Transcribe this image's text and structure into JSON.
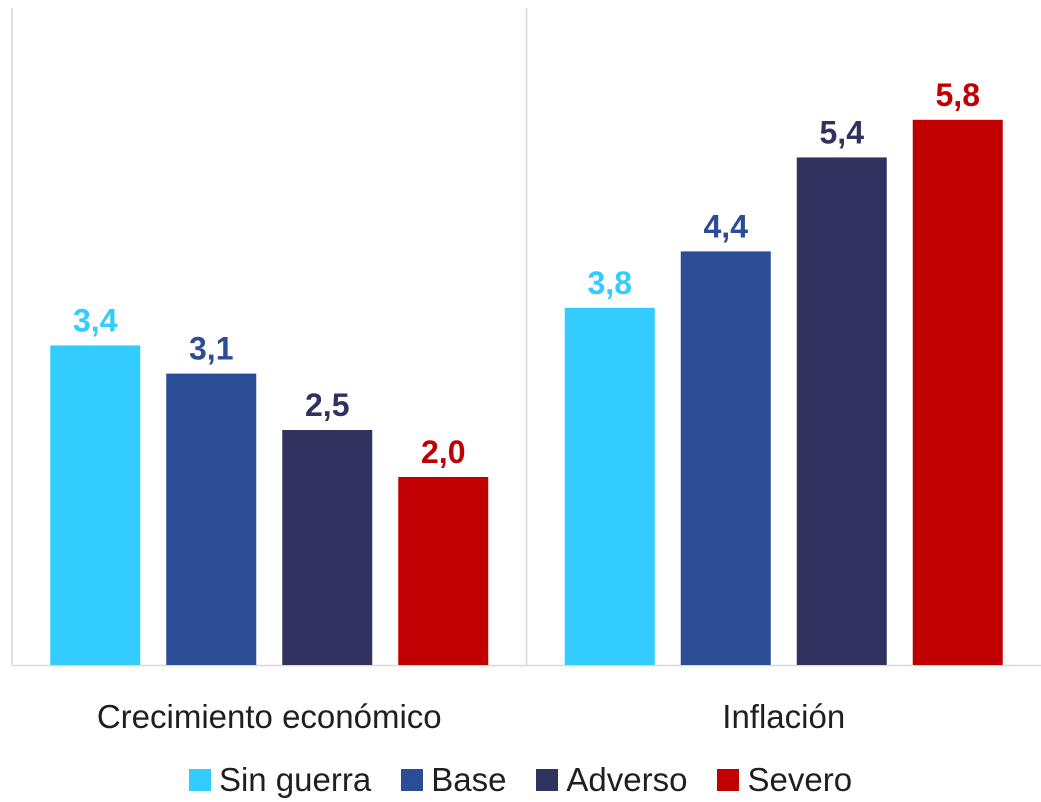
{
  "chart_data": {
    "type": "bar",
    "categories": [
      "Crecimiento económico",
      "Inflación"
    ],
    "series": [
      {
        "name": "Sin guerra",
        "values": [
          3.4,
          3.8
        ],
        "labels": [
          "3,4",
          "3,8"
        ],
        "color": "#33CCFF"
      },
      {
        "name": "Base",
        "values": [
          3.1,
          4.4
        ],
        "labels": [
          "3,1",
          "4,4"
        ],
        "color": "#2A4D96"
      },
      {
        "name": "Adverso",
        "values": [
          2.5,
          5.4
        ],
        "labels": [
          "2,5",
          "5,4"
        ],
        "color": "#323260"
      },
      {
        "name": "Severo",
        "values": [
          2.0,
          5.8
        ],
        "labels": [
          "2,0",
          "5,8"
        ],
        "color": "#C00000"
      }
    ],
    "ylim": [
      0,
      6.4
    ],
    "grid": false,
    "legend_position": "bottom",
    "axis_line_color": "#D9D9D9",
    "category_label_color": "#1F1F1F"
  }
}
